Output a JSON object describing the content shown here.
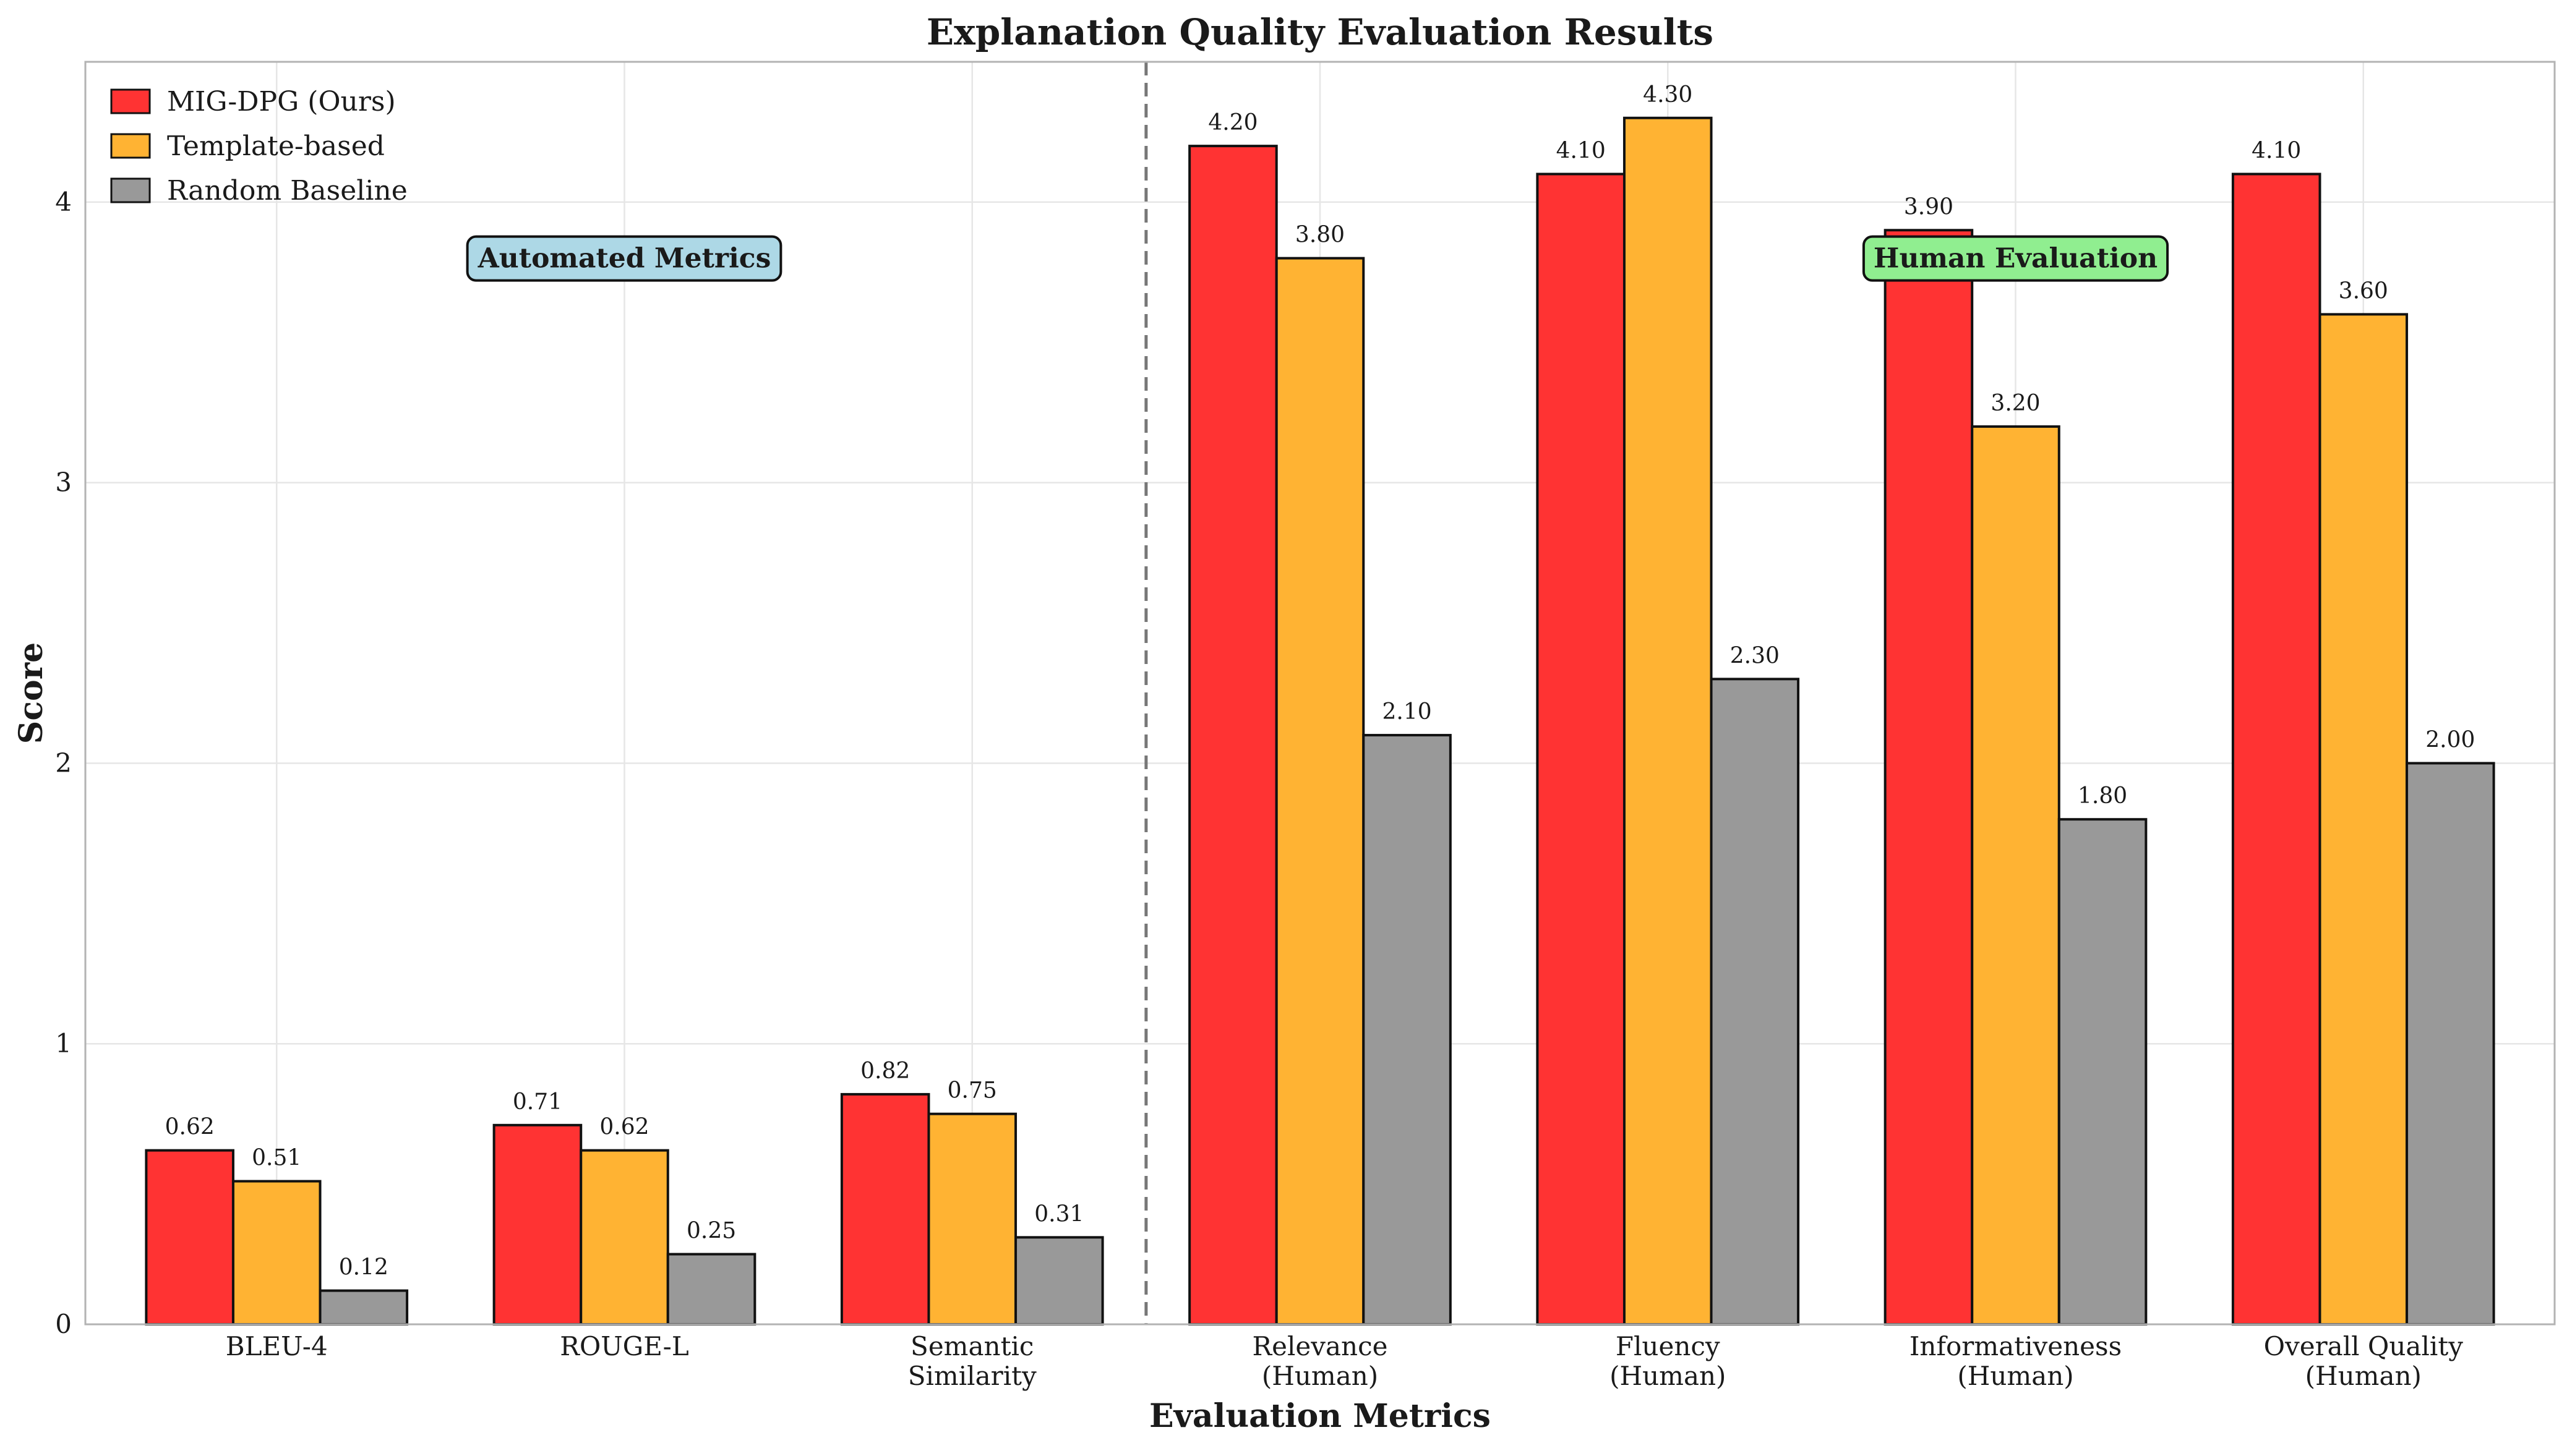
{
  "chart_data": {
    "type": "bar",
    "title": "Explanation Quality Evaluation Results",
    "xlabel": "Evaluation Metrics",
    "ylabel": "Score",
    "ylim": [
      0,
      4.5
    ],
    "yticks": [
      0,
      1,
      2,
      3,
      4
    ],
    "grid": true,
    "legend_position": "top-left",
    "categories": [
      [
        "BLEU-4"
      ],
      [
        "ROUGE-L"
      ],
      [
        "Semantic",
        "Similarity"
      ],
      [
        "Relevance",
        "(Human)"
      ],
      [
        "Fluency",
        "(Human)"
      ],
      [
        "Informativeness",
        "(Human)"
      ],
      [
        "Overall Quality",
        "(Human)"
      ]
    ],
    "series": [
      {
        "name": "MIG-DPG (Ours)",
        "color": "#ff3333",
        "values": [
          0.62,
          0.71,
          0.82,
          4.2,
          4.1,
          3.9,
          4.1
        ],
        "labels": [
          "0.62",
          "0.71",
          "0.82",
          "4.20",
          "4.10",
          "3.90",
          "4.10"
        ]
      },
      {
        "name": "Template-based",
        "color": "#ffb333",
        "values": [
          0.51,
          0.62,
          0.75,
          3.8,
          4.3,
          3.2,
          3.6
        ],
        "labels": [
          "0.51",
          "0.62",
          "0.75",
          "3.80",
          "4.30",
          "3.20",
          "3.60"
        ]
      },
      {
        "name": "Random Baseline",
        "color": "#999999",
        "values": [
          0.12,
          0.25,
          0.31,
          2.1,
          2.3,
          1.8,
          2.0
        ],
        "labels": [
          "0.12",
          "0.25",
          "0.31",
          "2.10",
          "2.30",
          "1.80",
          "2.00"
        ]
      }
    ],
    "annotations": [
      {
        "text": "Automated Metrics",
        "color": "#add8e6",
        "x_category": 1.0,
        "y": 3.8
      },
      {
        "text": "Human Evaluation",
        "color": "#90ee90",
        "x_category": 5.0,
        "y": 3.8
      }
    ],
    "divider_after_category": 2.5
  }
}
